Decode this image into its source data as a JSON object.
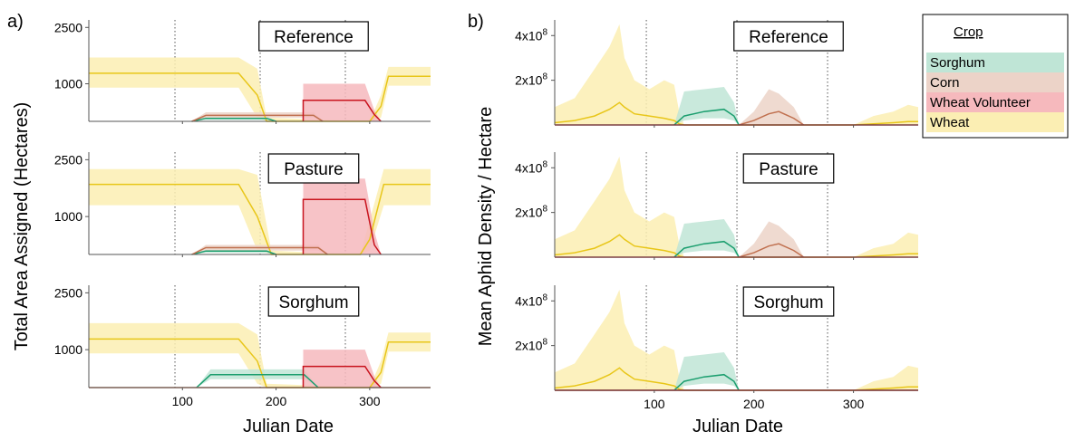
{
  "figure": {
    "panel_a_label": "a)",
    "panel_b_label": "b)",
    "a_ylabel": "Total Area Assigned (Hectares)",
    "a_xlabel": "Julian Date",
    "b_ylabel": "Mean Aphid Density / Hectare",
    "b_xlabel": "Julian Date",
    "legend_title": "Crop",
    "a_ytick_labels": [
      "2500",
      "1000"
    ],
    "b_ytick_labels": [
      "4x10^8",
      "2x10^8"
    ],
    "xtick_labels": [
      "100",
      "200",
      "300"
    ]
  },
  "colors": {
    "Sorghum": "#1a9e6e",
    "Corn": "#c0704f",
    "Wheat Volunteer": "#c8141e",
    "Wheat": "#e8c619",
    "Sorghum_fill": "#bfe5d6",
    "Corn_fill": "#ecd3c8",
    "Wheat Volunteer_fill": "#f6b9bd",
    "Wheat_fill": "#fbeeb3"
  },
  "chart_data": [
    {
      "type": "area",
      "panel": "a",
      "title": "Reference",
      "xlim": [
        0,
        365
      ],
      "ylim": [
        0,
        2700
      ],
      "yticks": [
        1000,
        2500
      ],
      "xticks": [
        100,
        200,
        300
      ],
      "vlines": [
        92,
        183,
        274
      ],
      "series": [
        {
          "name": "Wheat",
          "x": [
            0,
            160,
            180,
            190,
            300,
            312,
            320,
            365
          ],
          "y": [
            1280,
            1280,
            700,
            0,
            0,
            400,
            1200,
            1200
          ],
          "lower": [
            0,
            0,
            0,
            0,
            0,
            0,
            0,
            0
          ],
          "upper": [
            1700,
            1700,
            1400,
            100,
            0,
            700,
            1450,
            1450
          ],
          "lower_band": [
            900,
            900,
            100,
            0,
            0,
            100,
            950,
            950
          ]
        },
        {
          "name": "Sorghum",
          "x": [
            110,
            125,
            190,
            200
          ],
          "y": [
            0,
            80,
            80,
            0
          ],
          "lower_band": [
            0,
            40,
            40,
            0
          ],
          "upper": [
            0,
            130,
            130,
            0
          ]
        },
        {
          "name": "Corn",
          "x": [
            110,
            125,
            240,
            250
          ],
          "y": [
            0,
            160,
            160,
            0
          ],
          "lower_band": [
            0,
            100,
            100,
            0
          ],
          "upper": [
            0,
            240,
            240,
            0
          ]
        },
        {
          "name": "Wheat Volunteer",
          "x": [
            229,
            229,
            295,
            305,
            312
          ],
          "y": [
            0,
            560,
            560,
            180,
            0
          ],
          "lower_band": [
            0,
            0,
            0,
            0,
            0
          ],
          "upper": [
            0,
            1000,
            1000,
            300,
            0
          ]
        }
      ]
    },
    {
      "type": "area",
      "panel": "a",
      "title": "Pasture",
      "xlim": [
        0,
        365
      ],
      "ylim": [
        0,
        2700
      ],
      "yticks": [
        1000,
        2500
      ],
      "xticks": [
        100,
        200,
        300
      ],
      "vlines": [
        92,
        183,
        274
      ],
      "series": [
        {
          "name": "Wheat",
          "x": [
            0,
            160,
            180,
            195,
            290,
            300,
            315,
            365
          ],
          "y": [
            1850,
            1850,
            1000,
            0,
            0,
            400,
            1850,
            1850
          ],
          "lower_band": [
            1300,
            1300,
            100,
            0,
            0,
            100,
            1300,
            1300
          ],
          "upper": [
            2250,
            2250,
            2100,
            100,
            0,
            900,
            2250,
            2250
          ]
        },
        {
          "name": "Sorghum",
          "x": [
            110,
            125,
            190,
            200
          ],
          "y": [
            0,
            90,
            90,
            0
          ],
          "lower_band": [
            0,
            40,
            40,
            0
          ],
          "upper": [
            0,
            130,
            130,
            0
          ]
        },
        {
          "name": "Corn",
          "x": [
            110,
            125,
            245,
            255
          ],
          "y": [
            0,
            180,
            180,
            0
          ],
          "lower_band": [
            0,
            100,
            100,
            0
          ],
          "upper": [
            0,
            250,
            250,
            0
          ]
        },
        {
          "name": "Wheat Volunteer",
          "x": [
            229,
            229,
            295,
            305,
            312
          ],
          "y": [
            0,
            1450,
            1450,
            250,
            0
          ],
          "lower_band": [
            0,
            0,
            0,
            0,
            0
          ],
          "upper": [
            0,
            2000,
            2000,
            600,
            0
          ]
        }
      ]
    },
    {
      "type": "area",
      "panel": "a",
      "title": "Sorghum",
      "xlim": [
        0,
        365
      ],
      "ylim": [
        0,
        2700
      ],
      "yticks": [
        1000,
        2500
      ],
      "xticks": [
        100,
        200,
        300
      ],
      "vlines": [
        92,
        183,
        274
      ],
      "series": [
        {
          "name": "Wheat",
          "x": [
            0,
            160,
            180,
            190,
            300,
            312,
            320,
            365
          ],
          "y": [
            1280,
            1280,
            700,
            0,
            0,
            400,
            1200,
            1200
          ],
          "lower_band": [
            900,
            900,
            100,
            0,
            0,
            100,
            950,
            950
          ],
          "upper": [
            1700,
            1700,
            1400,
            100,
            0,
            700,
            1450,
            1450
          ]
        },
        {
          "name": "Sorghum",
          "x": [
            115,
            130,
            230,
            245
          ],
          "y": [
            0,
            340,
            340,
            0
          ],
          "lower_band": [
            0,
            220,
            220,
            0
          ],
          "upper": [
            0,
            480,
            480,
            0
          ]
        },
        {
          "name": "Corn",
          "x": [
            0,
            365
          ],
          "y": [
            0,
            0
          ],
          "lower_band": [
            0,
            0
          ],
          "upper": [
            0,
            0
          ]
        },
        {
          "name": "Wheat Volunteer",
          "x": [
            229,
            229,
            295,
            305,
            312
          ],
          "y": [
            0,
            560,
            560,
            180,
            0
          ],
          "lower_band": [
            0,
            0,
            0,
            0,
            0
          ],
          "upper": [
            0,
            1000,
            1000,
            300,
            0
          ]
        }
      ]
    },
    {
      "type": "area",
      "panel": "b",
      "title": "Reference",
      "xlim": [
        0,
        365
      ],
      "ylim": [
        0,
        470000000
      ],
      "yticks": [
        200000000,
        400000000
      ],
      "xticks": [
        100,
        200,
        300
      ],
      "vlines": [
        92,
        183,
        274
      ],
      "series": [
        {
          "name": "Wheat",
          "x": [
            0,
            20,
            40,
            55,
            65,
            70,
            80,
            95,
            110,
            120,
            125,
            130,
            190,
            300,
            320,
            340,
            355,
            365
          ],
          "y": [
            10000000,
            20000000,
            40000000,
            70000000,
            100000000,
            80000000,
            50000000,
            40000000,
            30000000,
            20000000,
            5000000,
            0,
            0,
            0,
            5000000,
            10000000,
            15000000,
            15000000
          ],
          "upper": [
            80000000,
            120000000,
            250000000,
            350000000,
            450000000,
            300000000,
            200000000,
            160000000,
            200000000,
            180000000,
            60000000,
            0,
            0,
            0,
            40000000,
            60000000,
            90000000,
            80000000
          ]
        },
        {
          "name": "Sorghum",
          "x": [
            120,
            130,
            150,
            170,
            180,
            185
          ],
          "y": [
            0,
            40000000,
            60000000,
            70000000,
            40000000,
            0
          ],
          "lower_band": [
            0,
            20000000,
            30000000,
            30000000,
            20000000,
            0
          ],
          "upper": [
            0,
            150000000,
            160000000,
            170000000,
            100000000,
            0
          ]
        },
        {
          "name": "Corn",
          "x": [
            185,
            200,
            215,
            225,
            240,
            250
          ],
          "y": [
            0,
            20000000,
            50000000,
            60000000,
            30000000,
            0
          ],
          "lower_band": [
            0,
            0,
            0,
            0,
            0,
            0
          ],
          "upper": [
            0,
            60000000,
            160000000,
            140000000,
            80000000,
            0
          ]
        },
        {
          "name": "Wheat Volunteer",
          "x": [
            0,
            365
          ],
          "y": [
            0,
            0
          ],
          "lower_band": [
            0,
            0
          ],
          "upper": [
            0,
            0
          ]
        }
      ]
    },
    {
      "type": "area",
      "panel": "b",
      "title": "Pasture",
      "xlim": [
        0,
        365
      ],
      "ylim": [
        0,
        470000000
      ],
      "yticks": [
        200000000,
        400000000
      ],
      "xticks": [
        100,
        200,
        300
      ],
      "vlines": [
        92,
        183,
        274
      ],
      "series": [
        {
          "name": "Wheat",
          "x": [
            0,
            20,
            40,
            55,
            65,
            70,
            80,
            95,
            110,
            120,
            125,
            130,
            190,
            300,
            320,
            340,
            355,
            365
          ],
          "y": [
            10000000,
            20000000,
            40000000,
            70000000,
            100000000,
            80000000,
            50000000,
            40000000,
            30000000,
            20000000,
            5000000,
            0,
            0,
            0,
            5000000,
            10000000,
            15000000,
            15000000
          ],
          "upper": [
            80000000,
            120000000,
            250000000,
            350000000,
            450000000,
            300000000,
            200000000,
            160000000,
            200000000,
            180000000,
            60000000,
            0,
            0,
            0,
            40000000,
            60000000,
            110000000,
            100000000
          ]
        },
        {
          "name": "Sorghum",
          "x": [
            120,
            130,
            150,
            170,
            180,
            185
          ],
          "y": [
            0,
            40000000,
            60000000,
            70000000,
            40000000,
            0
          ],
          "lower_band": [
            0,
            20000000,
            30000000,
            30000000,
            20000000,
            0
          ],
          "upper": [
            0,
            150000000,
            160000000,
            170000000,
            100000000,
            0
          ]
        },
        {
          "name": "Corn",
          "x": [
            185,
            200,
            215,
            225,
            240,
            250
          ],
          "y": [
            0,
            20000000,
            50000000,
            60000000,
            30000000,
            0
          ],
          "lower_band": [
            0,
            0,
            0,
            0,
            0,
            0
          ],
          "upper": [
            0,
            60000000,
            160000000,
            140000000,
            80000000,
            0
          ]
        },
        {
          "name": "Wheat Volunteer",
          "x": [
            0,
            365
          ],
          "y": [
            0,
            0
          ],
          "lower_band": [
            0,
            0
          ],
          "upper": [
            0,
            0
          ]
        }
      ]
    },
    {
      "type": "area",
      "panel": "b",
      "title": "Sorghum",
      "xlim": [
        0,
        365
      ],
      "ylim": [
        0,
        470000000
      ],
      "yticks": [
        200000000,
        400000000
      ],
      "xticks": [
        100,
        200,
        300
      ],
      "vlines": [
        92,
        183,
        274
      ],
      "series": [
        {
          "name": "Wheat",
          "x": [
            0,
            20,
            40,
            55,
            65,
            70,
            80,
            95,
            110,
            120,
            125,
            130,
            190,
            300,
            320,
            340,
            355,
            365
          ],
          "y": [
            10000000,
            20000000,
            40000000,
            70000000,
            100000000,
            80000000,
            50000000,
            40000000,
            30000000,
            20000000,
            5000000,
            0,
            0,
            0,
            5000000,
            10000000,
            15000000,
            15000000
          ],
          "upper": [
            80000000,
            120000000,
            250000000,
            350000000,
            450000000,
            300000000,
            200000000,
            160000000,
            200000000,
            180000000,
            60000000,
            0,
            0,
            0,
            40000000,
            60000000,
            110000000,
            100000000
          ]
        },
        {
          "name": "Sorghum",
          "x": [
            120,
            130,
            150,
            170,
            180,
            185
          ],
          "y": [
            0,
            40000000,
            60000000,
            70000000,
            40000000,
            0
          ],
          "lower_band": [
            0,
            20000000,
            30000000,
            30000000,
            20000000,
            0
          ],
          "upper": [
            0,
            150000000,
            160000000,
            170000000,
            100000000,
            0
          ]
        },
        {
          "name": "Corn",
          "x": [
            0,
            365
          ],
          "y": [
            0,
            0
          ],
          "lower_band": [
            0,
            0
          ],
          "upper": [
            0,
            0
          ]
        },
        {
          "name": "Wheat Volunteer",
          "x": [
            0,
            365
          ],
          "y": [
            0,
            0
          ],
          "lower_band": [
            0,
            0
          ],
          "upper": [
            0,
            0
          ]
        }
      ]
    }
  ],
  "legend": {
    "title": "Crop",
    "items": [
      "Sorghum",
      "Corn",
      "Wheat Volunteer",
      "Wheat"
    ]
  }
}
